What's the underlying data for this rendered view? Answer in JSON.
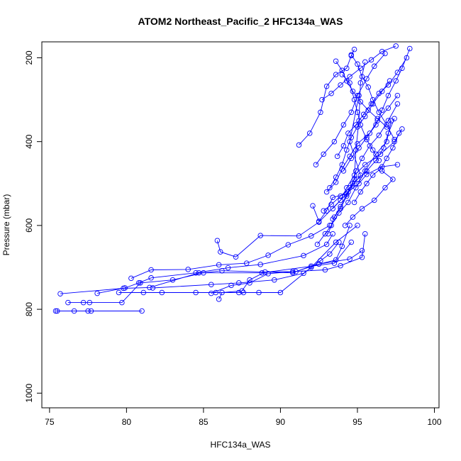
{
  "chart_data": {
    "type": "scatter",
    "title": "ATOM2 Northeast_Pacific_2 HFC134a_WAS",
    "xlabel": "HFC134a_WAS",
    "ylabel": "Pressure (mbar)",
    "xlim": [
      74.5,
      100.3
    ],
    "ylim": [
      1035,
      162
    ],
    "y_reversed": true,
    "x_ticks": [
      75,
      80,
      85,
      90,
      95,
      100
    ],
    "y_ticks": [
      200,
      400,
      600,
      800,
      1000
    ],
    "grid": false,
    "legend": "none",
    "color": "#0000ff",
    "marker": "open-circle",
    "series": [
      {
        "points": [
          [
            75.4,
            804
          ],
          [
            75.5,
            804
          ],
          [
            76.6,
            804
          ],
          [
            77.5,
            804
          ],
          [
            77.7,
            804
          ],
          [
            81.0,
            804
          ]
        ]
      },
      {
        "points": [
          [
            75.7,
            763
          ],
          [
            79.8,
            750
          ],
          [
            81.5,
            748
          ],
          [
            84.7,
            713
          ],
          [
            88.8,
            713
          ],
          [
            93.5,
            690
          ],
          [
            94.6,
            640
          ]
        ]
      },
      {
        "points": [
          [
            76.2,
            784
          ],
          [
            77.2,
            784
          ],
          [
            77.6,
            784
          ],
          [
            79.7,
            784
          ],
          [
            80.9,
            737
          ],
          [
            83.0,
            730
          ],
          [
            85.0,
            713
          ],
          [
            86.2,
            708
          ],
          [
            90.8,
            713
          ],
          [
            92.0,
            697
          ],
          [
            93.6,
            682
          ],
          [
            94.0,
            650
          ],
          [
            94.5,
            600
          ]
        ]
      },
      {
        "points": [
          [
            78.1,
            762
          ],
          [
            79.9,
            749
          ],
          [
            80.8,
            737
          ],
          [
            81.6,
            725
          ],
          [
            84.5,
            713
          ],
          [
            86.6,
            701
          ],
          [
            88.7,
            693
          ],
          [
            91.5,
            672
          ],
          [
            93.0,
            645
          ],
          [
            93.4,
            620
          ]
        ]
      },
      {
        "points": [
          [
            79.5,
            760
          ],
          [
            81.1,
            760
          ],
          [
            82.3,
            760
          ],
          [
            84.5,
            760
          ],
          [
            85.8,
            760
          ],
          [
            87.3,
            760
          ],
          [
            87.6,
            760
          ],
          [
            88.6,
            760
          ],
          [
            90.0,
            760
          ],
          [
            92.0,
            700
          ],
          [
            93.6,
            640
          ],
          [
            95.0,
            600
          ]
        ]
      },
      {
        "points": [
          [
            80.3,
            726
          ],
          [
            81.6,
            706
          ],
          [
            84.0,
            705
          ],
          [
            86.0,
            694
          ],
          [
            87.8,
            690
          ],
          [
            89.2,
            671
          ],
          [
            90.5,
            646
          ],
          [
            92.0,
            625
          ],
          [
            93.2,
            600
          ]
        ]
      },
      {
        "points": [
          [
            81.7,
            749
          ],
          [
            85.5,
            741
          ],
          [
            87.3,
            737
          ],
          [
            89.6,
            730
          ],
          [
            91.5,
            714
          ],
          [
            92.6,
            684
          ],
          [
            93.2,
            668
          ],
          [
            93.8,
            640
          ]
        ]
      },
      {
        "points": [
          [
            86.0,
            776
          ],
          [
            86.2,
            760
          ],
          [
            87.5,
            756
          ],
          [
            88.0,
            730
          ],
          [
            89.0,
            711
          ],
          [
            91.0,
            710
          ],
          [
            92.5,
            692
          ],
          [
            94.5,
            680
          ],
          [
            95.3,
            660
          ]
        ]
      },
      {
        "points": [
          [
            85.9,
            636
          ],
          [
            86.1,
            663
          ],
          [
            87.1,
            675
          ],
          [
            88.7,
            624
          ],
          [
            91.2,
            625
          ],
          [
            92.5,
            592
          ],
          [
            94.3,
            525
          ],
          [
            95.2,
            480
          ],
          [
            94.5,
            400
          ],
          [
            95.1,
            290
          ]
        ]
      },
      {
        "points": [
          [
            85.5,
            762
          ],
          [
            86.8,
            743
          ],
          [
            88.0,
            737
          ],
          [
            89.2,
            715
          ],
          [
            90.8,
            710
          ],
          [
            92.9,
            706
          ],
          [
            93.9,
            696
          ],
          [
            95.3,
            676
          ],
          [
            95.5,
            620
          ]
        ]
      },
      {
        "points": [
          [
            92.1,
            553
          ],
          [
            92.5,
            590
          ],
          [
            93.0,
            565
          ],
          [
            93.4,
            533
          ],
          [
            94.3,
            525
          ],
          [
            94.8,
            489
          ],
          [
            94.9,
            420
          ],
          [
            95.1,
            350
          ],
          [
            95.2,
            260
          ],
          [
            95.5,
            210
          ]
        ]
      },
      {
        "points": [
          [
            91.2,
            408
          ],
          [
            91.9,
            380
          ],
          [
            92.6,
            330
          ],
          [
            93.0,
            268
          ],
          [
            93.6,
            240
          ],
          [
            94.3,
            225
          ],
          [
            94.6,
            195
          ],
          [
            94.8,
            180
          ]
        ]
      },
      {
        "points": [
          [
            92.3,
            455
          ],
          [
            92.8,
            430
          ],
          [
            93.5,
            400
          ],
          [
            94.1,
            360
          ],
          [
            94.6,
            330
          ],
          [
            95.0,
            290
          ],
          [
            95.6,
            250
          ],
          [
            96.1,
            220
          ],
          [
            96.8,
            190
          ]
        ]
      },
      {
        "points": [
          [
            93.0,
            520
          ],
          [
            93.6,
            497
          ],
          [
            94.0,
            465
          ],
          [
            94.5,
            435
          ],
          [
            95.0,
            405
          ],
          [
            95.8,
            380
          ],
          [
            96.3,
            350
          ],
          [
            97.0,
            320
          ],
          [
            97.6,
            290
          ]
        ]
      },
      {
        "points": [
          [
            93.4,
            560
          ],
          [
            93.9,
            540
          ],
          [
            94.3,
            510
          ],
          [
            94.8,
            480
          ],
          [
            95.5,
            455
          ],
          [
            96.5,
            430
          ],
          [
            97.4,
            400
          ],
          [
            97.9,
            370
          ]
        ]
      },
      {
        "points": [
          [
            92.7,
            300
          ],
          [
            93.3,
            285
          ],
          [
            93.9,
            265
          ],
          [
            94.5,
            245
          ],
          [
            95.2,
            225
          ],
          [
            95.9,
            205
          ],
          [
            96.6,
            185
          ],
          [
            97.5,
            172
          ]
        ]
      },
      {
        "points": [
          [
            93.1,
            620
          ],
          [
            93.5,
            580
          ],
          [
            93.9,
            555
          ],
          [
            94.4,
            520
          ],
          [
            95.1,
            500
          ],
          [
            95.6,
            478
          ],
          [
            96.6,
            460
          ],
          [
            97.6,
            455
          ]
        ]
      },
      {
        "points": [
          [
            94.2,
            600
          ],
          [
            94.7,
            580
          ],
          [
            95.3,
            560
          ],
          [
            96.1,
            540
          ],
          [
            96.8,
            510
          ],
          [
            97.3,
            490
          ],
          [
            96.6,
            470
          ]
        ]
      },
      {
        "points": [
          [
            92.4,
            645
          ],
          [
            92.9,
            620
          ],
          [
            93.3,
            600
          ],
          [
            93.8,
            570
          ],
          [
            94.4,
            545
          ],
          [
            94.9,
            510
          ],
          [
            95.5,
            470
          ],
          [
            96.2,
            430
          ],
          [
            96.9,
            400
          ],
          [
            97.2,
            350
          ]
        ]
      },
      {
        "points": [
          [
            93.7,
            435
          ],
          [
            94.1,
            410
          ],
          [
            94.4,
            380
          ],
          [
            94.9,
            360
          ],
          [
            95.4,
            335
          ],
          [
            95.9,
            310
          ],
          [
            96.4,
            285
          ],
          [
            97.0,
            265
          ],
          [
            97.6,
            235
          ],
          [
            98.2,
            200
          ]
        ]
      },
      {
        "points": [
          [
            94.0,
            240
          ],
          [
            94.5,
            260
          ],
          [
            94.8,
            300
          ],
          [
            95.0,
            330
          ],
          [
            95.2,
            360
          ],
          [
            95.6,
            395
          ],
          [
            96.0,
            420
          ],
          [
            96.4,
            445
          ]
        ]
      },
      {
        "points": [
          [
            94.1,
            470
          ],
          [
            94.6,
            440
          ],
          [
            95.1,
            415
          ],
          [
            95.6,
            390
          ],
          [
            96.2,
            360
          ],
          [
            96.6,
            325
          ],
          [
            97.0,
            290
          ],
          [
            97.5,
            255
          ],
          [
            97.9,
            225
          ],
          [
            98.4,
            178
          ]
        ]
      },
      {
        "points": [
          [
            93.4,
            585
          ],
          [
            93.9,
            560
          ],
          [
            94.3,
            530
          ],
          [
            94.7,
            500
          ],
          [
            94.9,
            470
          ],
          [
            95.3,
            440
          ],
          [
            95.8,
            410
          ],
          [
            96.4,
            385
          ],
          [
            97.0,
            350
          ],
          [
            97.6,
            310
          ]
        ]
      },
      {
        "points": [
          [
            94.6,
            193
          ],
          [
            95.0,
            215
          ],
          [
            95.3,
            245
          ],
          [
            95.7,
            270
          ],
          [
            96.0,
            300
          ],
          [
            96.4,
            330
          ],
          [
            96.9,
            360
          ],
          [
            97.4,
            395
          ]
        ]
      },
      {
        "points": [
          [
            93.6,
            208
          ],
          [
            94.0,
            230
          ],
          [
            94.3,
            255
          ],
          [
            94.7,
            280
          ],
          [
            95.2,
            305
          ],
          [
            95.7,
            325
          ],
          [
            96.3,
            345
          ],
          [
            96.9,
            365
          ]
        ]
      },
      {
        "points": [
          [
            93.2,
            510
          ],
          [
            93.6,
            485
          ],
          [
            94.0,
            455
          ],
          [
            94.3,
            420
          ],
          [
            94.6,
            390
          ],
          [
            95.0,
            365
          ],
          [
            95.5,
            340
          ],
          [
            96.0,
            310
          ],
          [
            96.6,
            280
          ],
          [
            97.1,
            255
          ]
        ]
      },
      {
        "points": [
          [
            94.8,
            545
          ],
          [
            95.2,
            520
          ],
          [
            95.6,
            500
          ],
          [
            96.0,
            480
          ],
          [
            96.5,
            465
          ],
          [
            96.9,
            440
          ],
          [
            97.3,
            415
          ],
          [
            97.7,
            380
          ]
        ]
      },
      {
        "points": [
          [
            92.8,
            565
          ],
          [
            93.3,
            550
          ],
          [
            93.9,
            530
          ],
          [
            94.5,
            510
          ],
          [
            95.0,
            490
          ],
          [
            95.6,
            470
          ],
          [
            96.2,
            445
          ],
          [
            96.7,
            415
          ],
          [
            97.0,
            380
          ],
          [
            97.4,
            345
          ]
        ]
      }
    ]
  }
}
